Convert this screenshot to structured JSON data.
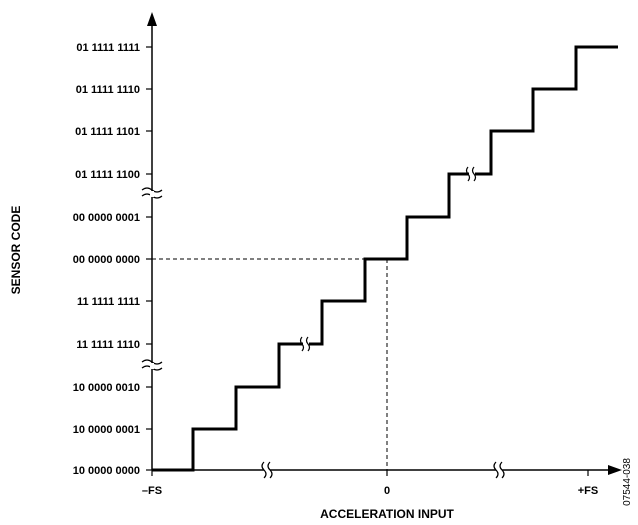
{
  "y_axis": {
    "title": "SENSOR CODE",
    "codes": [
      "10 0000 0000",
      "10 0000 0001",
      "10 0000 0010",
      "11 1111 1110",
      "11 1111 1111",
      "00 0000 0000",
      "00 0000 0001",
      "01 1111 1100",
      "01 1111 1101",
      "01 1111 1110",
      "01 1111 1111"
    ]
  },
  "x_axis": {
    "title": "ACCELERATION INPUT",
    "ticks": [
      "–FS",
      "0",
      "+FS"
    ]
  },
  "figure_id": "07544-038",
  "colors": {
    "line": "#000000",
    "background": "#ffffff"
  }
}
